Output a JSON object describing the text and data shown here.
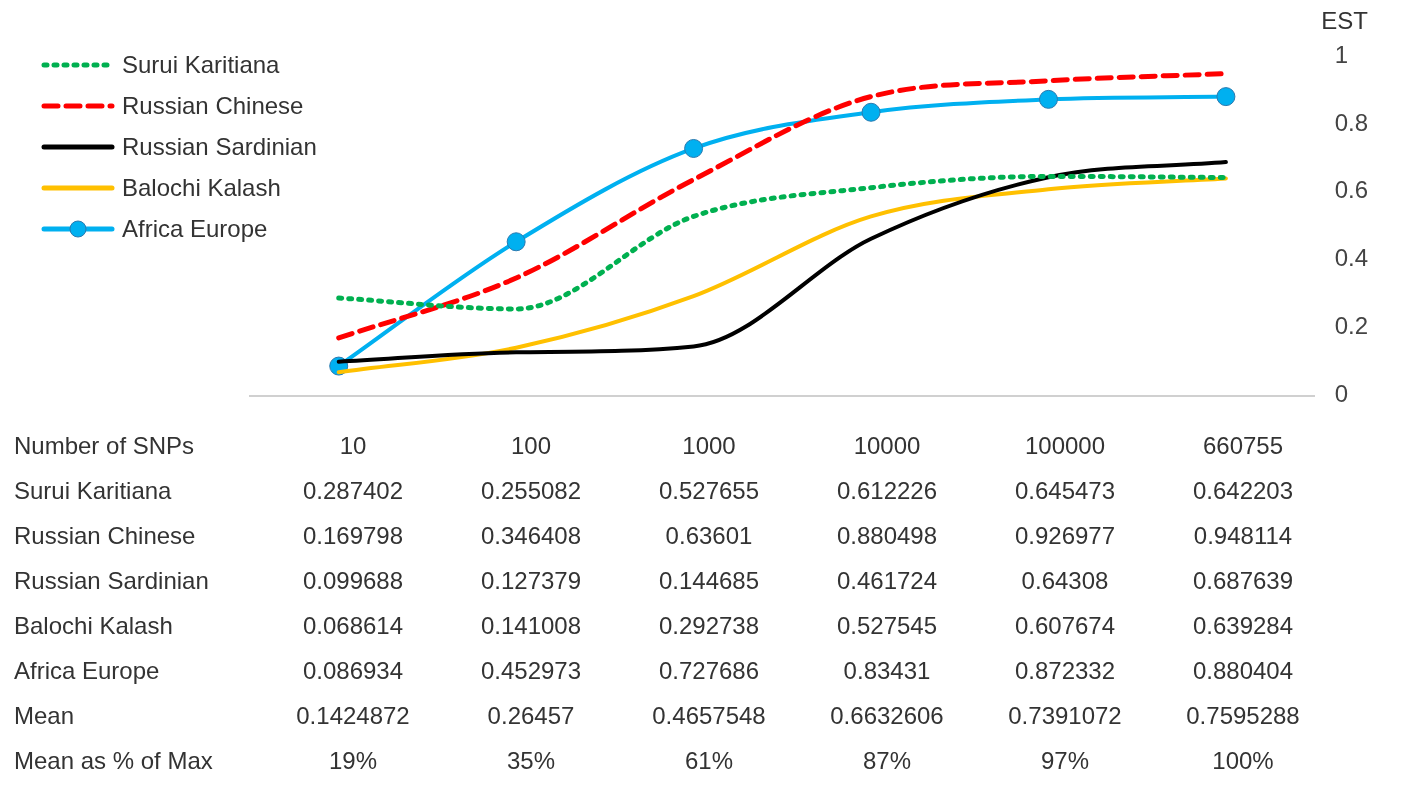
{
  "chart_data": {
    "type": "line",
    "xlabel": "Number of SNPs",
    "ylabel": "EST",
    "categories": [
      "10",
      "100",
      "1000",
      "10000",
      "100000",
      "660755"
    ],
    "series": [
      {
        "name": "Surui Karitiana",
        "color": "#00b050",
        "line_style": "dotted",
        "marker": "none",
        "values": [
          0.287402,
          0.255082,
          0.527655,
          0.612226,
          0.645473,
          0.642203
        ]
      },
      {
        "name": "Russian Chinese",
        "color": "#ff0000",
        "line_style": "dashed",
        "marker": "none",
        "values": [
          0.169798,
          0.346408,
          0.63601,
          0.880498,
          0.926977,
          0.948114
        ]
      },
      {
        "name": "Russian Sardinian",
        "color": "#000000",
        "line_style": "solid",
        "marker": "none",
        "values": [
          0.099688,
          0.127379,
          0.144685,
          0.461724,
          0.64308,
          0.687639
        ]
      },
      {
        "name": "Balochi Kalash",
        "color": "#ffc000",
        "line_style": "solid",
        "marker": "none",
        "values": [
          0.068614,
          0.141008,
          0.292738,
          0.527545,
          0.607674,
          0.639284
        ]
      },
      {
        "name": "Africa Europe",
        "color": "#00b0f0",
        "line_style": "solid",
        "marker": "circle",
        "values": [
          0.086934,
          0.452973,
          0.727686,
          0.83431,
          0.872332,
          0.880404
        ]
      }
    ],
    "ylim": [
      0,
      1
    ],
    "yticks": [
      0,
      0.2,
      0.4,
      0.6,
      0.8,
      1
    ],
    "grid": false,
    "legend": "top left",
    "data_labels": true,
    "annotations": [
      "Mean",
      "0.1424872",
      "0.26457",
      "0.4657548",
      "0.6632606",
      "0.7391072",
      "0.7595288",
      "Mean as % of Max",
      "19%",
      "35%",
      "61%",
      "87%",
      "97%",
      "100%"
    ]
  }
}
